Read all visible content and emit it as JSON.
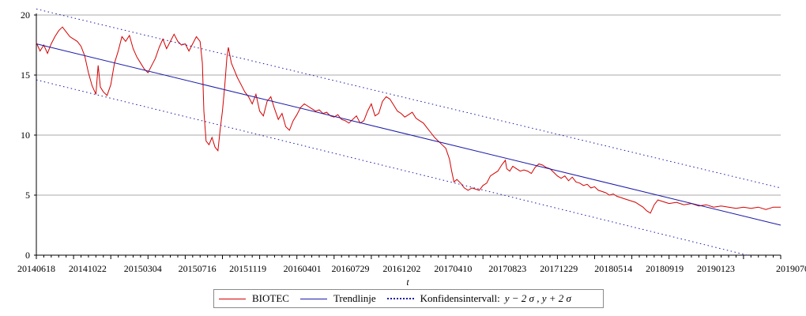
{
  "chart_data": {
    "type": "line",
    "xlabel": "t",
    "ylabel": "",
    "ylim": [
      0,
      20
    ],
    "yticks": [
      0,
      5,
      10,
      15,
      20
    ],
    "x_ticks": [
      {
        "label": "20140618",
        "t": 0
      },
      {
        "label": "20141022",
        "t": 0.0689
      },
      {
        "label": "20150304",
        "t": 0.1431
      },
      {
        "label": "20150716",
        "t": 0.2162
      },
      {
        "label": "20151119",
        "t": 0.2841
      },
      {
        "label": "20160401",
        "t": 0.3573
      },
      {
        "label": "20160729",
        "t": 0.422
      },
      {
        "label": "20161202",
        "t": 0.4909
      },
      {
        "label": "20170410",
        "t": 0.5599
      },
      {
        "label": "20170823",
        "t": 0.633
      },
      {
        "label": "20171229",
        "t": 0.702
      },
      {
        "label": "20180514",
        "t": 0.7752
      },
      {
        "label": "20180919",
        "t": 0.8441
      },
      {
        "label": "20190123",
        "t": 0.913
      },
      {
        "label": "20190705",
        "t": 1.0
      }
    ],
    "grid": {
      "horizontal": true,
      "vertical": false
    },
    "legend_position": "bottom",
    "series": [
      {
        "name": "BIOTEC",
        "color": "#d40000",
        "style": "solid",
        "points": [
          [
            0.0,
            17.7
          ],
          [
            0.005,
            17.0
          ],
          [
            0.01,
            17.5
          ],
          [
            0.015,
            16.8
          ],
          [
            0.02,
            17.6
          ],
          [
            0.025,
            18.2
          ],
          [
            0.03,
            18.7
          ],
          [
            0.035,
            19.0
          ],
          [
            0.04,
            18.6
          ],
          [
            0.045,
            18.2
          ],
          [
            0.05,
            18.0
          ],
          [
            0.055,
            17.8
          ],
          [
            0.06,
            17.4
          ],
          [
            0.065,
            16.6
          ],
          [
            0.07,
            15.2
          ],
          [
            0.075,
            14.1
          ],
          [
            0.08,
            13.4
          ],
          [
            0.083,
            15.8
          ],
          [
            0.086,
            14.0
          ],
          [
            0.09,
            13.6
          ],
          [
            0.095,
            13.3
          ],
          [
            0.1,
            14.2
          ],
          [
            0.105,
            16.0
          ],
          [
            0.11,
            17.0
          ],
          [
            0.115,
            18.2
          ],
          [
            0.12,
            17.8
          ],
          [
            0.125,
            18.3
          ],
          [
            0.13,
            17.2
          ],
          [
            0.135,
            16.5
          ],
          [
            0.14,
            16.0
          ],
          [
            0.145,
            15.5
          ],
          [
            0.15,
            15.2
          ],
          [
            0.155,
            15.8
          ],
          [
            0.16,
            16.4
          ],
          [
            0.165,
            17.3
          ],
          [
            0.17,
            18.0
          ],
          [
            0.175,
            17.2
          ],
          [
            0.18,
            17.8
          ],
          [
            0.185,
            18.4
          ],
          [
            0.19,
            17.8
          ],
          [
            0.195,
            17.5
          ],
          [
            0.2,
            17.6
          ],
          [
            0.205,
            17.0
          ],
          [
            0.21,
            17.6
          ],
          [
            0.215,
            18.2
          ],
          [
            0.22,
            17.8
          ],
          [
            0.223,
            16.0
          ],
          [
            0.225,
            12.0
          ],
          [
            0.228,
            9.5
          ],
          [
            0.232,
            9.2
          ],
          [
            0.236,
            9.8
          ],
          [
            0.24,
            9.0
          ],
          [
            0.244,
            8.7
          ],
          [
            0.247,
            10.5
          ],
          [
            0.25,
            12.0
          ],
          [
            0.253,
            14.0
          ],
          [
            0.256,
            16.5
          ],
          [
            0.258,
            17.3
          ],
          [
            0.262,
            16.0
          ],
          [
            0.266,
            15.4
          ],
          [
            0.27,
            14.8
          ],
          [
            0.275,
            14.2
          ],
          [
            0.28,
            13.6
          ],
          [
            0.285,
            13.2
          ],
          [
            0.29,
            12.6
          ],
          [
            0.295,
            13.4
          ],
          [
            0.3,
            12.0
          ],
          [
            0.305,
            11.6
          ],
          [
            0.31,
            12.8
          ],
          [
            0.315,
            13.2
          ],
          [
            0.32,
            12.2
          ],
          [
            0.325,
            11.3
          ],
          [
            0.33,
            11.8
          ],
          [
            0.335,
            10.7
          ],
          [
            0.34,
            10.4
          ],
          [
            0.345,
            11.2
          ],
          [
            0.35,
            11.7
          ],
          [
            0.355,
            12.3
          ],
          [
            0.36,
            12.6
          ],
          [
            0.365,
            12.4
          ],
          [
            0.37,
            12.2
          ],
          [
            0.375,
            12.0
          ],
          [
            0.38,
            12.1
          ],
          [
            0.385,
            11.8
          ],
          [
            0.39,
            11.9
          ],
          [
            0.395,
            11.6
          ],
          [
            0.4,
            11.5
          ],
          [
            0.405,
            11.7
          ],
          [
            0.41,
            11.3
          ],
          [
            0.415,
            11.2
          ],
          [
            0.42,
            11.0
          ],
          [
            0.425,
            11.3
          ],
          [
            0.43,
            11.6
          ],
          [
            0.435,
            11.0
          ],
          [
            0.44,
            11.2
          ],
          [
            0.445,
            12.0
          ],
          [
            0.45,
            12.6
          ],
          [
            0.455,
            11.6
          ],
          [
            0.46,
            11.8
          ],
          [
            0.465,
            12.8
          ],
          [
            0.47,
            13.2
          ],
          [
            0.475,
            13.0
          ],
          [
            0.48,
            12.5
          ],
          [
            0.485,
            12.0
          ],
          [
            0.49,
            11.8
          ],
          [
            0.495,
            11.5
          ],
          [
            0.5,
            11.7
          ],
          [
            0.505,
            11.9
          ],
          [
            0.51,
            11.4
          ],
          [
            0.515,
            11.2
          ],
          [
            0.52,
            11.0
          ],
          [
            0.525,
            10.6
          ],
          [
            0.53,
            10.2
          ],
          [
            0.535,
            9.8
          ],
          [
            0.54,
            9.5
          ],
          [
            0.545,
            9.2
          ],
          [
            0.55,
            8.9
          ],
          [
            0.555,
            8.0
          ],
          [
            0.558,
            7.0
          ],
          [
            0.561,
            6.1
          ],
          [
            0.565,
            6.3
          ],
          [
            0.57,
            6.0
          ],
          [
            0.575,
            5.6
          ],
          [
            0.58,
            5.4
          ],
          [
            0.585,
            5.6
          ],
          [
            0.59,
            5.5
          ],
          [
            0.595,
            5.4
          ],
          [
            0.6,
            5.8
          ],
          [
            0.605,
            6.0
          ],
          [
            0.61,
            6.6
          ],
          [
            0.615,
            6.8
          ],
          [
            0.62,
            7.0
          ],
          [
            0.625,
            7.5
          ],
          [
            0.63,
            7.9
          ],
          [
            0.632,
            7.2
          ],
          [
            0.636,
            7.0
          ],
          [
            0.64,
            7.4
          ],
          [
            0.645,
            7.2
          ],
          [
            0.65,
            7.0
          ],
          [
            0.655,
            7.1
          ],
          [
            0.66,
            7.0
          ],
          [
            0.665,
            6.8
          ],
          [
            0.67,
            7.3
          ],
          [
            0.675,
            7.6
          ],
          [
            0.68,
            7.5
          ],
          [
            0.685,
            7.3
          ],
          [
            0.69,
            7.2
          ],
          [
            0.695,
            6.9
          ],
          [
            0.7,
            6.6
          ],
          [
            0.705,
            6.4
          ],
          [
            0.71,
            6.6
          ],
          [
            0.715,
            6.2
          ],
          [
            0.72,
            6.5
          ],
          [
            0.725,
            6.1
          ],
          [
            0.73,
            6.0
          ],
          [
            0.735,
            5.8
          ],
          [
            0.74,
            5.9
          ],
          [
            0.745,
            5.6
          ],
          [
            0.75,
            5.7
          ],
          [
            0.755,
            5.4
          ],
          [
            0.76,
            5.3
          ],
          [
            0.765,
            5.2
          ],
          [
            0.77,
            5.0
          ],
          [
            0.775,
            5.1
          ],
          [
            0.78,
            4.9
          ],
          [
            0.785,
            4.8
          ],
          [
            0.79,
            4.7
          ],
          [
            0.795,
            4.6
          ],
          [
            0.8,
            4.5
          ],
          [
            0.805,
            4.4
          ],
          [
            0.81,
            4.2
          ],
          [
            0.815,
            4.0
          ],
          [
            0.82,
            3.7
          ],
          [
            0.825,
            3.5
          ],
          [
            0.83,
            4.2
          ],
          [
            0.835,
            4.6
          ],
          [
            0.84,
            4.5
          ],
          [
            0.845,
            4.4
          ],
          [
            0.85,
            4.3
          ],
          [
            0.86,
            4.4
          ],
          [
            0.87,
            4.2
          ],
          [
            0.88,
            4.3
          ],
          [
            0.89,
            4.1
          ],
          [
            0.9,
            4.2
          ],
          [
            0.91,
            4.0
          ],
          [
            0.92,
            4.1
          ],
          [
            0.93,
            4.0
          ],
          [
            0.94,
            3.9
          ],
          [
            0.95,
            4.0
          ],
          [
            0.96,
            3.9
          ],
          [
            0.97,
            4.0
          ],
          [
            0.98,
            3.8
          ],
          [
            0.99,
            4.0
          ],
          [
            1.0,
            4.0
          ]
        ]
      },
      {
        "name": "Trendlinje",
        "color": "#1a1aa8",
        "style": "solid",
        "points": [
          [
            0.0,
            17.6
          ],
          [
            1.0,
            2.5
          ]
        ]
      },
      {
        "name": "Konfidensintervall",
        "color": "#1a1aa8",
        "style": "dotted",
        "points": [
          [
            0.0,
            20.5
          ],
          [
            1.0,
            5.6
          ]
        ]
      },
      {
        "name": "Konfidensintervall",
        "color": "#1a1aa8",
        "style": "dotted",
        "points": [
          [
            0.0,
            14.6
          ],
          [
            0.955,
            0.0
          ]
        ]
      }
    ]
  },
  "legend": {
    "items": [
      {
        "label": "BIOTEC"
      },
      {
        "label": "Trendlinje"
      },
      {
        "label": "Konfidensintervall:",
        "expr": "y − 2 σ , y + 2 σ"
      }
    ]
  }
}
